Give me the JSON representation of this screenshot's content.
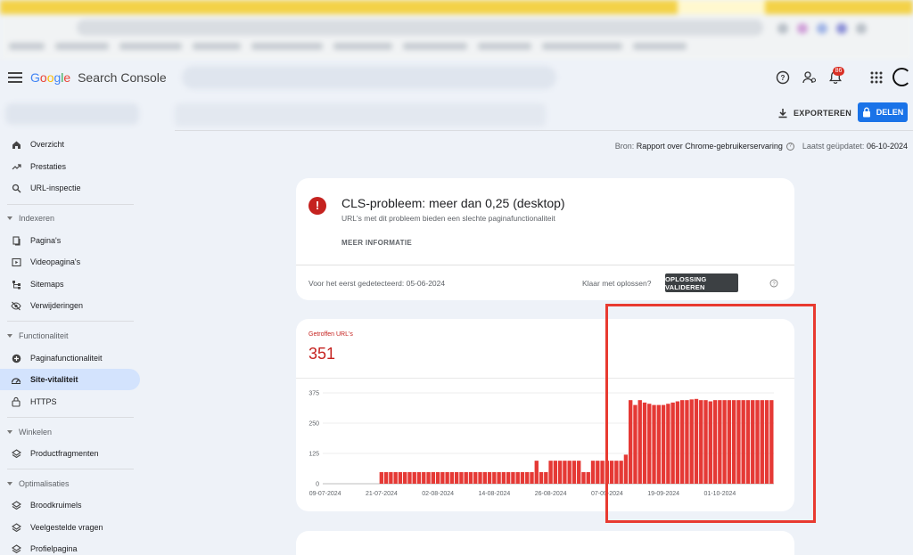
{
  "header": {
    "logo_google": [
      "G",
      "o",
      "o",
      "g",
      "l",
      "e"
    ],
    "logo_product": "Search Console",
    "notification_count": "86"
  },
  "toolbar": {
    "export_label": "EXPORTEREN",
    "share_label": "DELEN"
  },
  "sidebar": {
    "items_top": [
      {
        "label": "Overzicht",
        "icon": "home-icon"
      },
      {
        "label": "Prestaties",
        "icon": "trending-up-icon"
      },
      {
        "label": "URL-inspectie",
        "icon": "search-icon"
      }
    ],
    "sections": [
      {
        "label": "Indexeren",
        "items": [
          {
            "label": "Pagina's",
            "icon": "pages-icon"
          },
          {
            "label": "Videopagina's",
            "icon": "video-page-icon"
          },
          {
            "label": "Sitemaps",
            "icon": "sitemap-icon"
          },
          {
            "label": "Verwijderingen",
            "icon": "eye-off-icon"
          }
        ]
      },
      {
        "label": "Functionaliteit",
        "items": [
          {
            "label": "Paginafunctionaliteit",
            "icon": "add-circle-icon"
          },
          {
            "label": "Site-vitaliteit",
            "icon": "speed-icon",
            "active": true
          },
          {
            "label": "HTTPS",
            "icon": "lock-icon"
          }
        ]
      },
      {
        "label": "Winkelen",
        "items": [
          {
            "label": "Productfragmenten",
            "icon": "layers-icon"
          }
        ]
      },
      {
        "label": "Optimalisaties",
        "items": [
          {
            "label": "Broodkruimels",
            "icon": "layers-icon"
          },
          {
            "label": "Veelgestelde vragen",
            "icon": "layers-icon"
          },
          {
            "label": "Profielpagina",
            "icon": "layers-icon"
          }
        ]
      }
    ]
  },
  "source": {
    "prefix": "Bron:",
    "report": "Rapport over Chrome-gebruikerservaring",
    "updated_label": "Laatst geüpdatet:",
    "updated_value": "06-10-2024"
  },
  "issue": {
    "title": "CLS-probleem: meer dan 0,25 (desktop)",
    "subtitle": "URL's met dit probleem bieden een slechte paginafunctionaliteit",
    "more_info": "MEER INFORMATIE",
    "first_detected": "Voor het eerst gedetecteerd: 05-06-2024",
    "ready_label": "Klaar met oplossen?",
    "validate_label": "OPLOSSING VALIDEREN"
  },
  "metric": {
    "label": "Getroffen URL's",
    "value": "351"
  },
  "colors": {
    "accent": "#1a73e8",
    "error": "#c5221f",
    "bar": "#e53935",
    "annotation": "#e83a30"
  },
  "chart_data": {
    "type": "bar",
    "title": "",
    "ylim": [
      0,
      375
    ],
    "y_ticks": [
      "375",
      "250",
      "125",
      "0"
    ],
    "y_tick_values": [
      375,
      250,
      125,
      0
    ],
    "x_tick_labels": [
      "09-07-2024",
      "21-07-2024",
      "02-08-2024",
      "14-08-2024",
      "26-08-2024",
      "07-09-2024",
      "19-09-2024",
      "01-10-2024"
    ],
    "x_tick_indices": [
      0,
      12,
      24,
      36,
      48,
      60,
      72,
      84
    ],
    "grid": true,
    "series": [
      {
        "values": [
          0,
          0,
          0,
          0,
          0,
          0,
          0,
          0,
          0,
          0,
          0,
          0,
          48,
          48,
          48,
          48,
          48,
          48,
          48,
          48,
          48,
          48,
          48,
          48,
          48,
          48,
          48,
          48,
          48,
          48,
          48,
          48,
          48,
          48,
          48,
          48,
          48,
          48,
          48,
          48,
          48,
          48,
          48,
          48,
          48,
          95,
          48,
          48,
          95,
          95,
          95,
          95,
          95,
          95,
          95,
          48,
          48,
          95,
          95,
          95,
          95,
          95,
          95,
          95,
          120,
          345,
          325,
          345,
          335,
          330,
          325,
          325,
          325,
          330,
          335,
          340,
          345,
          345,
          348,
          350,
          345,
          345,
          340,
          345,
          345,
          345,
          345,
          345,
          345,
          345,
          345,
          345,
          345,
          345,
          345,
          345
        ]
      }
    ]
  }
}
